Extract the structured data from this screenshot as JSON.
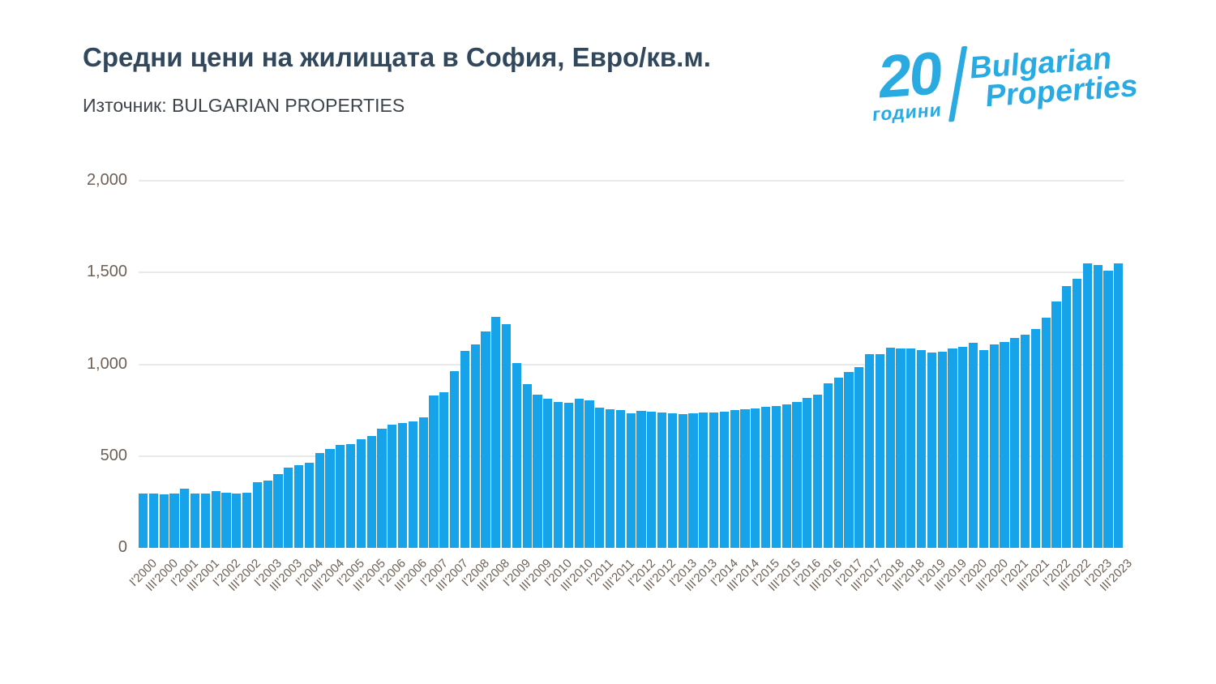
{
  "header": {
    "title": "Средни цени на жилищата в София, Евро/кв.м.",
    "source_label": "Източник: BULGARIAN PROPERTIES"
  },
  "logo": {
    "years_number": "20",
    "years_word": "години",
    "brand_line1": "Bulgarian",
    "brand_line2": "Properties",
    "color": "#29abe2"
  },
  "chart_data": {
    "type": "bar",
    "title": "Средни цени на жилищата в София, Евро/кв.м.",
    "source": "Източник: BULGARIAN PROPERTIES",
    "unit": "EUR per sq.m.",
    "bar_color": "#17a3ea",
    "grid_color": "#e9e9e9",
    "axis_label_color": "#6e6156",
    "ylim": [
      0,
      2000
    ],
    "grid": true,
    "legend": "none",
    "x_label_every": 2,
    "yticks": [
      {
        "value": 0,
        "label": "0"
      },
      {
        "value": 500,
        "label": "500"
      },
      {
        "value": 1000,
        "label": "1,000"
      },
      {
        "value": 1500,
        "label": "1,500"
      },
      {
        "value": 2000,
        "label": "2,000"
      }
    ],
    "categories": [
      "I'2000",
      "II'2000",
      "III'2000",
      "IV'2000",
      "I'2001",
      "II'2001",
      "III'2001",
      "IV'2001",
      "I'2002",
      "II'2002",
      "III'2002",
      "IV'2002",
      "I'2003",
      "II'2003",
      "III'2003",
      "IV'2003",
      "I'2004",
      "II'2004",
      "III'2004",
      "IV'2004",
      "I'2005",
      "II'2005",
      "III'2005",
      "IV'2005",
      "I'2006",
      "II'2006",
      "III'2006",
      "IV'2006",
      "I'2007",
      "II'2007",
      "III'2007",
      "IV'2007",
      "I'2008",
      "II'2008",
      "III'2008",
      "IV'2008",
      "I'2009",
      "II'2009",
      "III'2009",
      "IV'2009",
      "I'2010",
      "II'2010",
      "III'2010",
      "IV'2010",
      "I'2011",
      "II'2011",
      "III'2011",
      "IV'2011",
      "I'2012",
      "II'2012",
      "III'2012",
      "IV'2012",
      "I'2013",
      "II'2013",
      "III'2013",
      "IV'2013",
      "I'2014",
      "II'2014",
      "III'2014",
      "IV'2014",
      "I'2015",
      "II'2015",
      "III'2015",
      "IV'2015",
      "I'2016",
      "II'2016",
      "III'2016",
      "IV'2016",
      "I'2017",
      "II'2017",
      "III'2017",
      "IV'2017",
      "I'2018",
      "II'2018",
      "III'2018",
      "IV'2018",
      "I'2019",
      "II'2019",
      "III'2019",
      "IV'2019",
      "I'2020",
      "II'2020",
      "III'2020",
      "IV'2020",
      "I'2021",
      "II'2021",
      "III'2021",
      "IV'2021",
      "I'2022",
      "II'2022",
      "III'2022",
      "IV'2022",
      "I'2023",
      "II'2023",
      "III'2023"
    ],
    "values": [
      297,
      294,
      291,
      298,
      323,
      298,
      298,
      311,
      300,
      297,
      300,
      358,
      365,
      401,
      435,
      452,
      464,
      518,
      537,
      559,
      567,
      592,
      611,
      650,
      673,
      681,
      691,
      710,
      828,
      846,
      963,
      1072,
      1109,
      1179,
      1257,
      1219,
      1006,
      890,
      836,
      812,
      793,
      790,
      812,
      805,
      763,
      753,
      749,
      734,
      745,
      743,
      739,
      731,
      727,
      731,
      736,
      739,
      743,
      749,
      754,
      761,
      768,
      773,
      783,
      793,
      819,
      833,
      896,
      928,
      956,
      985,
      1057,
      1055,
      1092,
      1087,
      1085,
      1079,
      1063,
      1069,
      1084,
      1094,
      1116,
      1078,
      1110,
      1120,
      1142,
      1161,
      1194,
      1255,
      1341,
      1424,
      1465,
      1548,
      1539,
      1510,
      1548
    ]
  }
}
